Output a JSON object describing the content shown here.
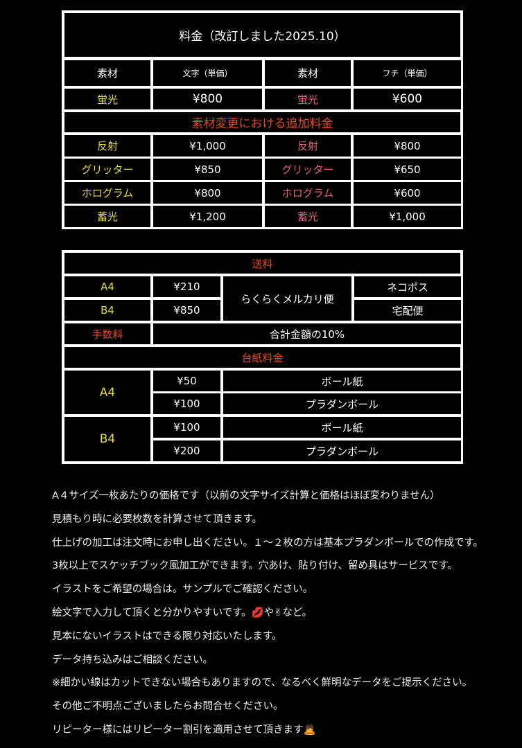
{
  "colors": {
    "material_left": "#e6dc3a",
    "material_right": "#e8607c",
    "section_heading": "#e84a22"
  },
  "price_table": {
    "title": "料金（改訂しました2025.10）",
    "headers": [
      "素材",
      "文字（単価）",
      "素材",
      "フチ（単価）"
    ],
    "base_row": [
      "蛍光",
      "¥800",
      "蛍光",
      "¥600"
    ],
    "section_title": "素材変更における追加料金",
    "rows": [
      [
        "反射",
        "¥1,000",
        "反射",
        "¥800"
      ],
      [
        "グリッター",
        "¥850",
        "グリッター",
        "¥650"
      ],
      [
        "ホログラム",
        "¥800",
        "ホログラム",
        "¥600"
      ],
      [
        "蓄光",
        "¥1,200",
        "蓄光",
        "¥1,000"
      ]
    ]
  },
  "shipping_table": {
    "title": "送料",
    "rows": [
      {
        "size": "A4",
        "price": "¥210",
        "method": "ネコポス"
      },
      {
        "size": "B4",
        "price": "¥850",
        "method": "宅配便"
      }
    ],
    "service": "らくらくメルカリ便",
    "fee_label": "手数料",
    "fee_value": "合計金額の10%",
    "board_title": "台紙料金",
    "boards": [
      {
        "size": "A4",
        "options": [
          {
            "price": "¥50",
            "type": "ボール紙"
          },
          {
            "price": "¥100",
            "type": "プラダンボール"
          }
        ]
      },
      {
        "size": "B4",
        "options": [
          {
            "price": "¥100",
            "type": "ボール紙"
          },
          {
            "price": "¥200",
            "type": "プラダンボール"
          }
        ]
      }
    ]
  },
  "notes": [
    "A４サイズ一枚あたりの価格です（以前の文字サイズ計算と価格はほぼ変わりません）",
    "見積もり時に必要枚数を計算させて頂きます。",
    "仕上げの加工は注文時にお申し出ください。１〜２枚の方は基本プラダンボールでの作成です。",
    "3枚以上でスケッチブック風加工ができます。穴あけ、貼り付け、留め具はサービスです。",
    "イラストをご希望の場合は。サンプルでご確認ください。",
    "絵文字で入力して頂くと分かりやすいです。💋や✌など。",
    "見本にないイラストはできる限り対応いたします。",
    "データ持ち込みはご相談ください。",
    "※細かい線はカットできない場合もありますので、なるべく鮮明なデータをご提示ください。",
    "その他ご不明点ございましたらお問合せください。",
    "リピーター様にはリピーター割引を適用させて頂きます🙇"
  ]
}
